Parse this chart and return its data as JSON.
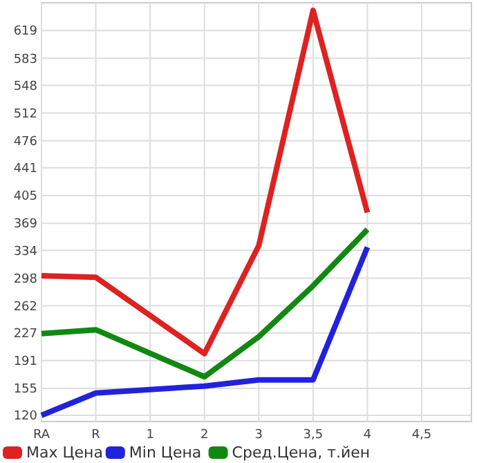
{
  "chart_data": {
    "type": "line",
    "categories": [
      "RA",
      "R",
      "1",
      "2",
      "3",
      "3,5",
      "4",
      "4,5"
    ],
    "series": [
      {
        "name": "Max Цена",
        "color": "#dd2222",
        "values": [
          301,
          299,
          null,
          200,
          340,
          645,
          383,
          null
        ]
      },
      {
        "name": "Min Цена",
        "color": "#2222dd",
        "values": [
          120,
          149,
          null,
          158,
          166,
          166,
          338,
          null
        ]
      },
      {
        "name": "Сред.Цена, т.йен",
        "color": "#118811",
        "values": [
          226,
          231,
          null,
          170,
          222,
          288,
          361,
          null
        ]
      }
    ],
    "ylim": [
      112,
      655
    ],
    "yticks": [
      120,
      155,
      191,
      227,
      262,
      298,
      334,
      369,
      405,
      441,
      476,
      512,
      548,
      583,
      619
    ],
    "grid": true,
    "legend": "bottom",
    "marker": "none",
    "line_style": "solid"
  }
}
